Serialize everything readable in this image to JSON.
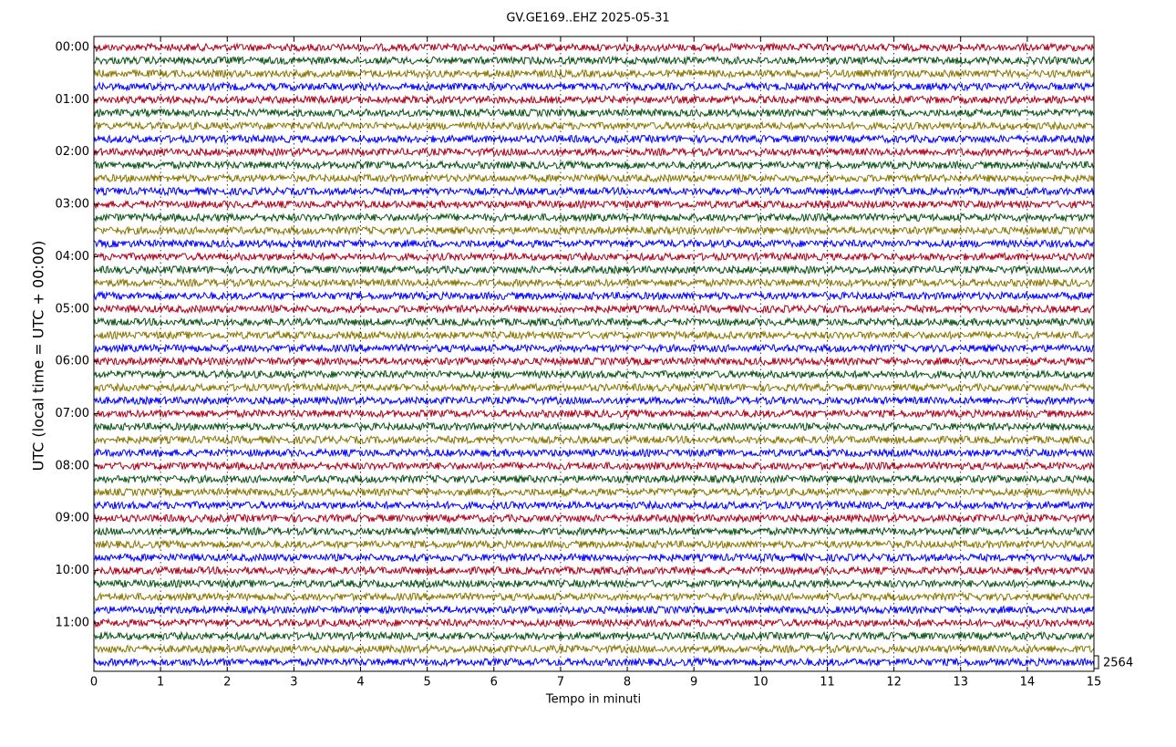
{
  "chart_data": {
    "type": "helicorder",
    "title": "GV.GE169..EHZ 2025-05-31",
    "x_label": "Tempo in minuti",
    "y_label": "UTC (local time = UTC + 00:00)",
    "xlim": [
      0,
      15
    ],
    "xticks": [
      0,
      1,
      2,
      3,
      4,
      5,
      6,
      7,
      8,
      9,
      10,
      11,
      12,
      13,
      14,
      15
    ],
    "ylim": [
      0,
      12
    ],
    "yticks": [
      {
        "value": 0,
        "label": "00:00"
      },
      {
        "value": 1,
        "label": "01:00"
      },
      {
        "value": 2,
        "label": "02:00"
      },
      {
        "value": 3,
        "label": "03:00"
      },
      {
        "value": 4,
        "label": "04:00"
      },
      {
        "value": 5,
        "label": "05:00"
      },
      {
        "value": 6,
        "label": "06:00"
      },
      {
        "value": 7,
        "label": "07:00"
      },
      {
        "value": 8,
        "label": "08:00"
      },
      {
        "value": 9,
        "label": "09:00"
      },
      {
        "value": 10,
        "label": "10:00"
      },
      {
        "value": 11,
        "label": "11:00"
      }
    ],
    "colors": [
      "#b0001a",
      "#0a5214",
      "#8a7400",
      "#0000ff"
    ],
    "grid": true,
    "scale": 2564
  }
}
